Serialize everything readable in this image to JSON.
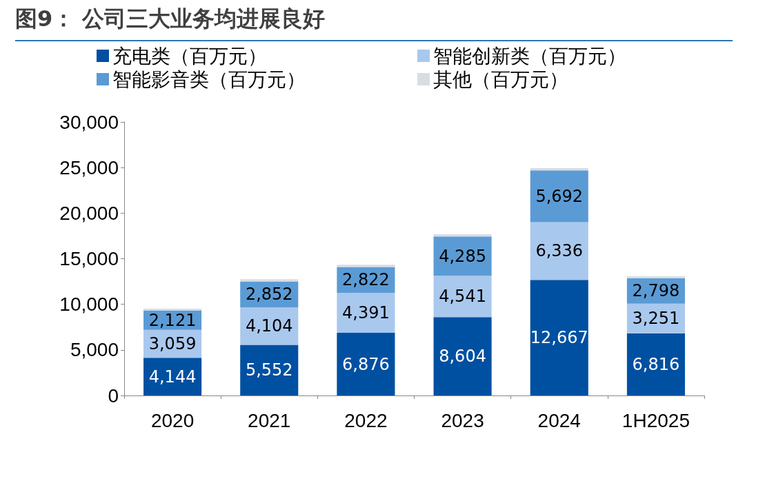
{
  "chart_data": {
    "type": "bar",
    "title": "图9： 公司三大业务均进展良好",
    "categories": [
      "2020",
      "2021",
      "2022",
      "2023",
      "2024",
      "1H2025"
    ],
    "stacked": true,
    "legend": "top",
    "grid": false,
    "ylim": [
      0,
      30000
    ],
    "yticks": [
      0,
      {
        "value": 5000,
        "label": "5,000"
      },
      {
        "value": 10000,
        "label": "10,000"
      },
      {
        "value": 15000,
        "label": "15,000"
      },
      {
        "value": 20000,
        "label": "20,000"
      },
      {
        "value": 25000,
        "label": "25,000"
      },
      {
        "value": 30000,
        "label": "30,000"
      }
    ],
    "series": [
      {
        "name": "充电类（百万元）",
        "color": "#0050a2",
        "values": [
          4144,
          5552,
          6876,
          8604,
          12667,
          6816
        ],
        "value_labels": [
          "4,144",
          "5,552",
          "6,876",
          "8,604",
          "12,667",
          "6,816"
        ]
      },
      {
        "name": "智能创新类（百万元）",
        "color": "#a9c8ee",
        "values": [
          3059,
          4104,
          4391,
          4541,
          6336,
          3251
        ],
        "value_labels": [
          "3,059",
          "4,104",
          "4,391",
          "4,541",
          "6,336",
          "3,251"
        ]
      },
      {
        "name": "智能影音类（百万元）",
        "color": "#5b9bd5",
        "values": [
          2121,
          2852,
          2822,
          4285,
          5692,
          2798
        ],
        "value_labels": [
          "2,121",
          "2,852",
          "2,822",
          "4,285",
          "5,692",
          "2,798"
        ]
      },
      {
        "name": "其他（百万元）",
        "color": "#d9dde3",
        "values": [
          200,
          250,
          250,
          250,
          250,
          200
        ]
      }
    ]
  }
}
